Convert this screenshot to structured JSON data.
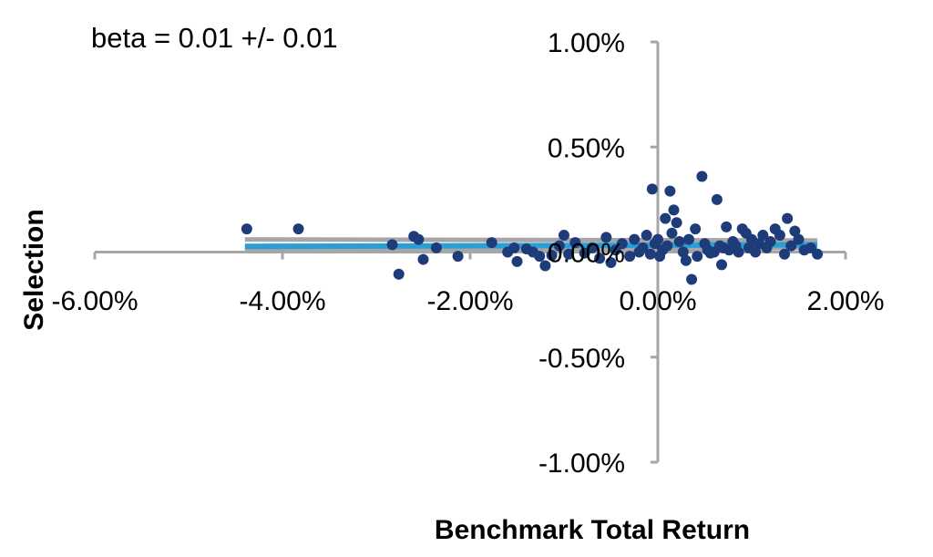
{
  "chart_data": {
    "type": "scatter",
    "annotation": "beta = 0.01 +/- 0.01",
    "xlabel": "Benchmark Total Return",
    "ylabel": "Selection",
    "xlim": [
      -6.0,
      2.0
    ],
    "ylim": [
      -1.0,
      1.0
    ],
    "x_ticks": [
      {
        "value": -6.0,
        "label": "-6.00%"
      },
      {
        "value": -4.0,
        "label": "-4.00%"
      },
      {
        "value": -2.0,
        "label": "-2.00%"
      },
      {
        "value": 0.0,
        "label": "0.00%"
      },
      {
        "value": 2.0,
        "label": "2.00%"
      }
    ],
    "y_ticks": [
      {
        "value": 1.0,
        "label": "1.00%"
      },
      {
        "value": 0.5,
        "label": "0.50%"
      },
      {
        "value": 0.0,
        "label": "0.00%"
      },
      {
        "value": -0.5,
        "label": "-0.50%"
      },
      {
        "value": -1.0,
        "label": "-1.00%"
      }
    ],
    "grid": false,
    "colors": {
      "points": "#1f3c7a",
      "fit_line": "#2a9fd6",
      "band": "#a6a6a6",
      "axis": "#a6a6a6"
    },
    "fit_line": {
      "x": [
        -4.4,
        1.7
      ],
      "y": [
        0.027,
        0.035
      ]
    },
    "band": {
      "x": [
        -4.4,
        1.7
      ],
      "upper": [
        0.06,
        0.055
      ],
      "lower": [
        0.005,
        0.02
      ]
    },
    "points": [
      {
        "x": -4.38,
        "y": 0.11
      },
      {
        "x": -3.83,
        "y": 0.11
      },
      {
        "x": -2.83,
        "y": 0.035
      },
      {
        "x": -2.76,
        "y": -0.105
      },
      {
        "x": -2.6,
        "y": 0.075
      },
      {
        "x": -2.55,
        "y": 0.06
      },
      {
        "x": -2.5,
        "y": -0.035
      },
      {
        "x": -2.36,
        "y": 0.02
      },
      {
        "x": -2.13,
        "y": -0.02
      },
      {
        "x": -1.77,
        "y": 0.045
      },
      {
        "x": -1.6,
        "y": 0.0
      },
      {
        "x": -1.53,
        "y": 0.02
      },
      {
        "x": -1.5,
        "y": -0.045
      },
      {
        "x": -1.4,
        "y": 0.015
      },
      {
        "x": -1.33,
        "y": 0.0
      },
      {
        "x": -1.26,
        "y": -0.02
      },
      {
        "x": -1.2,
        "y": -0.065
      },
      {
        "x": -1.13,
        "y": -0.015
      },
      {
        "x": -1.05,
        "y": 0.03
      },
      {
        "x": -1.0,
        "y": 0.08
      },
      {
        "x": -0.95,
        "y": -0.01
      },
      {
        "x": -0.88,
        "y": 0.045
      },
      {
        "x": -0.78,
        "y": -0.005
      },
      {
        "x": -0.7,
        "y": 0.02
      },
      {
        "x": -0.62,
        "y": -0.03
      },
      {
        "x": -0.55,
        "y": 0.07
      },
      {
        "x": -0.5,
        "y": -0.05
      },
      {
        "x": -0.45,
        "y": 0.01
      },
      {
        "x": -0.38,
        "y": 0.04
      },
      {
        "x": -0.3,
        "y": -0.02
      },
      {
        "x": -0.25,
        "y": 0.06
      },
      {
        "x": -0.2,
        "y": 0.0
      },
      {
        "x": -0.16,
        "y": 0.02
      },
      {
        "x": -0.12,
        "y": 0.08
      },
      {
        "x": -0.08,
        "y": -0.01
      },
      {
        "x": -0.06,
        "y": 0.3
      },
      {
        "x": -0.03,
        "y": 0.04
      },
      {
        "x": 0.0,
        "y": 0.06
      },
      {
        "x": 0.02,
        "y": -0.02
      },
      {
        "x": 0.05,
        "y": 0.01
      },
      {
        "x": 0.08,
        "y": 0.16
      },
      {
        "x": 0.1,
        "y": 0.03
      },
      {
        "x": 0.13,
        "y": 0.29
      },
      {
        "x": 0.15,
        "y": 0.09
      },
      {
        "x": 0.17,
        "y": 0.2
      },
      {
        "x": 0.2,
        "y": 0.14
      },
      {
        "x": 0.23,
        "y": 0.05
      },
      {
        "x": 0.27,
        "y": 0.0
      },
      {
        "x": 0.3,
        "y": -0.04
      },
      {
        "x": 0.33,
        "y": 0.06
      },
      {
        "x": 0.36,
        "y": -0.13
      },
      {
        "x": 0.4,
        "y": 0.11
      },
      {
        "x": 0.42,
        "y": -0.02
      },
      {
        "x": 0.47,
        "y": 0.36
      },
      {
        "x": 0.5,
        "y": 0.04
      },
      {
        "x": 0.53,
        "y": 0.01
      },
      {
        "x": 0.56,
        "y": -0.005
      },
      {
        "x": 0.6,
        "y": 0.0
      },
      {
        "x": 0.63,
        "y": 0.25
      },
      {
        "x": 0.66,
        "y": 0.03
      },
      {
        "x": 0.68,
        "y": -0.06
      },
      {
        "x": 0.7,
        "y": 0.02
      },
      {
        "x": 0.73,
        "y": 0.12
      },
      {
        "x": 0.76,
        "y": 0.01
      },
      {
        "x": 0.8,
        "y": 0.05
      },
      {
        "x": 0.83,
        "y": 0.03
      },
      {
        "x": 0.86,
        "y": 0.0
      },
      {
        "x": 0.9,
        "y": 0.11
      },
      {
        "x": 0.94,
        "y": 0.09
      },
      {
        "x": 0.97,
        "y": 0.02
      },
      {
        "x": 1.0,
        "y": 0.06
      },
      {
        "x": 1.04,
        "y": 0.0
      },
      {
        "x": 1.08,
        "y": 0.04
      },
      {
        "x": 1.12,
        "y": 0.08
      },
      {
        "x": 1.16,
        "y": 0.02
      },
      {
        "x": 1.2,
        "y": 0.05
      },
      {
        "x": 1.25,
        "y": 0.11
      },
      {
        "x": 1.3,
        "y": 0.08
      },
      {
        "x": 1.35,
        "y": -0.01
      },
      {
        "x": 1.38,
        "y": 0.16
      },
      {
        "x": 1.42,
        "y": 0.03
      },
      {
        "x": 1.46,
        "y": 0.1
      },
      {
        "x": 1.5,
        "y": 0.06
      },
      {
        "x": 1.56,
        "y": 0.01
      },
      {
        "x": 1.63,
        "y": 0.02
      },
      {
        "x": 1.7,
        "y": -0.01
      }
    ]
  }
}
